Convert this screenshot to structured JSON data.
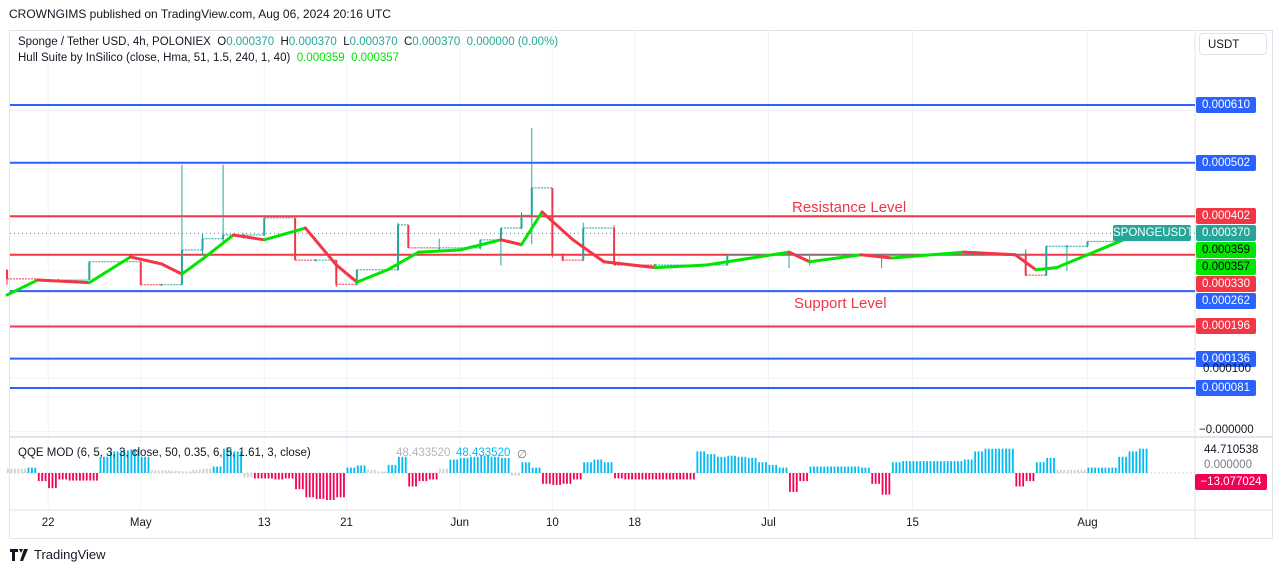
{
  "publisher": "CROWNGIMS published on TradingView.com, Aug 06, 2024 20:16 UTC",
  "legend": {
    "symbol": "Sponge / Tether USD, 4h, POLONIEX",
    "o_label": "O",
    "o": "0.000370",
    "h_label": "H",
    "h": "0.000370",
    "l_label": "L",
    "l": "0.000370",
    "c_label": "C",
    "c": "0.000370",
    "change": "0.000000 (0.00%)",
    "hull_name": "Hull Suite by InSilico (close, Hma, 51, 1.5, 240, 1, 40)",
    "hull_v1": "0.000359",
    "hull_v2": "0.000357",
    "qqe_name": "QQE MOD (6, 5, 3, 3, close, 50, 0.35, 6, 5, 1.61, 3, close)",
    "qqe_v1": "48.433520",
    "qqe_v2": "48.433520",
    "qqe_v3": "∅"
  },
  "currency_button": "USDT",
  "annotations": {
    "resistance": "Resistance Level",
    "support": "Support Level"
  },
  "colors": {
    "blue_line": "#2962ff",
    "red_line": "#f23645",
    "teal": "#26a69a",
    "hull_up": "#00e600",
    "hull_down": "#f23645",
    "qqe_up": "#00bcf2",
    "qqe_down": "#f50057",
    "qqe_neutral": "#cfcfcf"
  },
  "chart_data": {
    "type": "candlestick",
    "symbol": "SPONGEUSDT",
    "ylim": [
      0,
      0.00065
    ],
    "horizontal_lines": [
      {
        "value": "0.000610",
        "color": "blue"
      },
      {
        "value": "0.000502",
        "color": "blue"
      },
      {
        "value": "0.000402",
        "color": "red"
      },
      {
        "value": "0.000330",
        "color": "red"
      },
      {
        "value": "0.000262",
        "color": "blue"
      },
      {
        "value": "0.000196",
        "color": "red"
      },
      {
        "value": "0.000136",
        "color": "blue"
      },
      {
        "value": "0.000081",
        "color": "blue"
      }
    ],
    "last_price": {
      "label": "SPONGEUSDT",
      "value": "0.000370"
    },
    "hull_labels": [
      "0.000359",
      "0.000357"
    ],
    "axis_labels": [
      {
        "value": "0.000100"
      },
      {
        "value": "−0.000000"
      }
    ],
    "x_ticks": [
      {
        "date": "04-22",
        "label": "22"
      },
      {
        "date": "05-01",
        "label": "May"
      },
      {
        "date": "05-13",
        "label": "13"
      },
      {
        "date": "05-21",
        "label": "21"
      },
      {
        "date": "06-01",
        "label": "Jun"
      },
      {
        "date": "06-10",
        "label": "10"
      },
      {
        "date": "06-18",
        "label": "18"
      },
      {
        "date": "07-01",
        "label": "Jul"
      },
      {
        "date": "07-15",
        "label": "15"
      },
      {
        "date": "08-01",
        "label": "Aug"
      }
    ],
    "candles": [
      [
        "04-18",
        0.000302,
        0.000302,
        0.000274,
        0.000285
      ],
      [
        "04-21",
        0.000285,
        0.000285,
        0.000283,
        0.000283
      ],
      [
        "04-23",
        0.000283,
        0.000285,
        0.000283,
        0.000283
      ],
      [
        "04-26",
        0.000283,
        0.000317,
        0.000283,
        0.000317
      ],
      [
        "04-29",
        0.000317,
        0.000317,
        0.000315,
        0.000317
      ],
      [
        "05-01",
        0.000317,
        0.000317,
        0.000274,
        0.000274
      ],
      [
        "05-03",
        0.000274,
        0.000276,
        0.000274,
        0.000274
      ],
      [
        "05-05",
        0.000274,
        0.000498,
        0.000274,
        0.000339
      ],
      [
        "05-07",
        0.000339,
        0.00037,
        0.00033,
        0.00036
      ],
      [
        "05-09",
        0.00036,
        0.000498,
        0.00035,
        0.000367
      ],
      [
        "05-11",
        0.000367,
        0.00037,
        0.00036,
        0.000367
      ],
      [
        "05-13",
        0.000367,
        0.000399,
        0.000365,
        0.000399
      ],
      [
        "05-16",
        0.000399,
        0.000399,
        0.00032,
        0.00032
      ],
      [
        "05-18",
        0.00032,
        0.000322,
        0.000318,
        0.00032
      ],
      [
        "05-20",
        0.00032,
        0.00032,
        0.00027,
        0.000275
      ],
      [
        "05-22",
        0.000275,
        0.000302,
        0.000272,
        0.000302
      ],
      [
        "05-25",
        0.000302,
        0.000305,
        0.0003,
        0.000302
      ],
      [
        "05-26",
        0.000302,
        0.00039,
        0.0003,
        0.000386
      ],
      [
        "05-27",
        0.000386,
        0.000386,
        0.000343,
        0.000343
      ],
      [
        "05-30",
        0.000343,
        0.00036,
        0.00034,
        0.000343
      ],
      [
        "06-03",
        0.000343,
        0.000358,
        0.00034,
        0.000358
      ],
      [
        "06-05",
        0.000358,
        0.00038,
        0.00031,
        0.00038
      ],
      [
        "06-07",
        0.00038,
        0.00041,
        0.000378,
        0.000404
      ],
      [
        "06-08",
        0.000404,
        0.000567,
        0.00035,
        0.000455
      ],
      [
        "06-10",
        0.000455,
        0.000455,
        0.000325,
        0.00033
      ],
      [
        "06-11",
        0.00033,
        0.000332,
        0.000318,
        0.00032
      ],
      [
        "06-13",
        0.00032,
        0.00039,
        0.000318,
        0.00038
      ],
      [
        "06-16",
        0.00038,
        0.000385,
        0.000311,
        0.000311
      ],
      [
        "06-20",
        0.000311,
        0.000313,
        0.000309,
        0.000311
      ],
      [
        "06-25",
        0.000311,
        0.000313,
        0.000309,
        0.000311
      ],
      [
        "06-27",
        0.000311,
        0.00033,
        0.00031,
        0.00033
      ],
      [
        "07-03",
        0.00033,
        0.000332,
        0.000305,
        0.00033
      ],
      [
        "07-05",
        0.00033,
        0.000332,
        0.00031,
        0.00033
      ],
      [
        "07-09",
        0.00033,
        0.000332,
        0.000328,
        0.00033
      ],
      [
        "07-12",
        0.00033,
        0.000332,
        0.000305,
        0.00033
      ],
      [
        "07-17",
        0.00033,
        0.000332,
        0.000328,
        0.00033
      ],
      [
        "07-24",
        0.00033,
        0.000332,
        0.000328,
        0.00033
      ],
      [
        "07-26",
        0.00033,
        0.00034,
        0.00029,
        0.000292
      ],
      [
        "07-28",
        0.000292,
        0.000346,
        0.00029,
        0.000346
      ],
      [
        "07-30",
        0.000346,
        0.000348,
        0.0003,
        0.000346
      ],
      [
        "08-01",
        0.000346,
        0.000355,
        0.000344,
        0.000355
      ],
      [
        "08-04",
        0.000355,
        0.00037,
        0.000353,
        0.00037
      ],
      [
        "08-06",
        0.00037,
        0.00037,
        0.00037,
        0.00037
      ]
    ],
    "hull": [
      [
        "04-18",
        0.000255
      ],
      [
        "04-21",
        0.000283
      ],
      [
        "04-26",
        0.000278
      ],
      [
        "04-30",
        0.000326
      ],
      [
        "05-03",
        0.000313
      ],
      [
        "05-05",
        0.000294
      ],
      [
        "05-07",
        0.000322
      ],
      [
        "05-10",
        0.000367
      ],
      [
        "05-13",
        0.000358
      ],
      [
        "05-17",
        0.00038
      ],
      [
        "05-20",
        0.000311
      ],
      [
        "05-22",
        0.000279
      ],
      [
        "05-25",
        0.000302
      ],
      [
        "05-28",
        0.000335
      ],
      [
        "06-01",
        0.000339
      ],
      [
        "06-05",
        0.000358
      ],
      [
        "06-07",
        0.000349
      ],
      [
        "06-09",
        0.00041
      ],
      [
        "06-12",
        0.000358
      ],
      [
        "06-15",
        0.000317
      ],
      [
        "06-20",
        0.000306
      ],
      [
        "06-25",
        0.000311
      ],
      [
        "07-03",
        0.000335
      ],
      [
        "07-05",
        0.000317
      ],
      [
        "07-10",
        0.00033
      ],
      [
        "07-13",
        0.000324
      ],
      [
        "07-20",
        0.000335
      ],
      [
        "07-25",
        0.00033
      ],
      [
        "07-27",
        0.000302
      ],
      [
        "07-29",
        0.000306
      ],
      [
        "08-01",
        0.00033
      ],
      [
        "08-05",
        0.000362
      ]
    ],
    "qqe": {
      "start_date": "04-18",
      "last_values": [
        "44.710538",
        "0.000000",
        "−13.077024"
      ],
      "values": [
        8,
        8,
        10,
        -15,
        -28,
        -12,
        -14,
        -14,
        -14,
        30,
        40,
        42,
        44,
        30,
        5,
        5,
        4,
        3,
        6,
        8,
        12,
        45,
        40,
        -8,
        -10,
        -10,
        -12,
        -10,
        -30,
        -45,
        -48,
        -50,
        -45,
        10,
        14,
        6,
        3,
        15,
        30,
        -25,
        -15,
        -12,
        8,
        25,
        28,
        30,
        32,
        30,
        28,
        -5,
        20,
        10,
        -20,
        -22,
        -20,
        -12,
        20,
        25,
        20,
        -10,
        -12,
        -12,
        -12,
        -12,
        -12,
        -12,
        -12,
        40,
        35,
        30,
        32,
        30,
        28,
        20,
        15,
        10,
        -35,
        -15,
        12,
        12,
        12,
        12,
        12,
        10,
        -20,
        -40,
        20,
        22,
        22,
        22,
        22,
        22,
        22,
        25,
        40,
        45,
        45,
        45,
        -25,
        -15,
        20,
        28,
        6,
        6,
        6,
        10,
        10,
        10,
        30,
        40,
        45
      ]
    }
  }
}
